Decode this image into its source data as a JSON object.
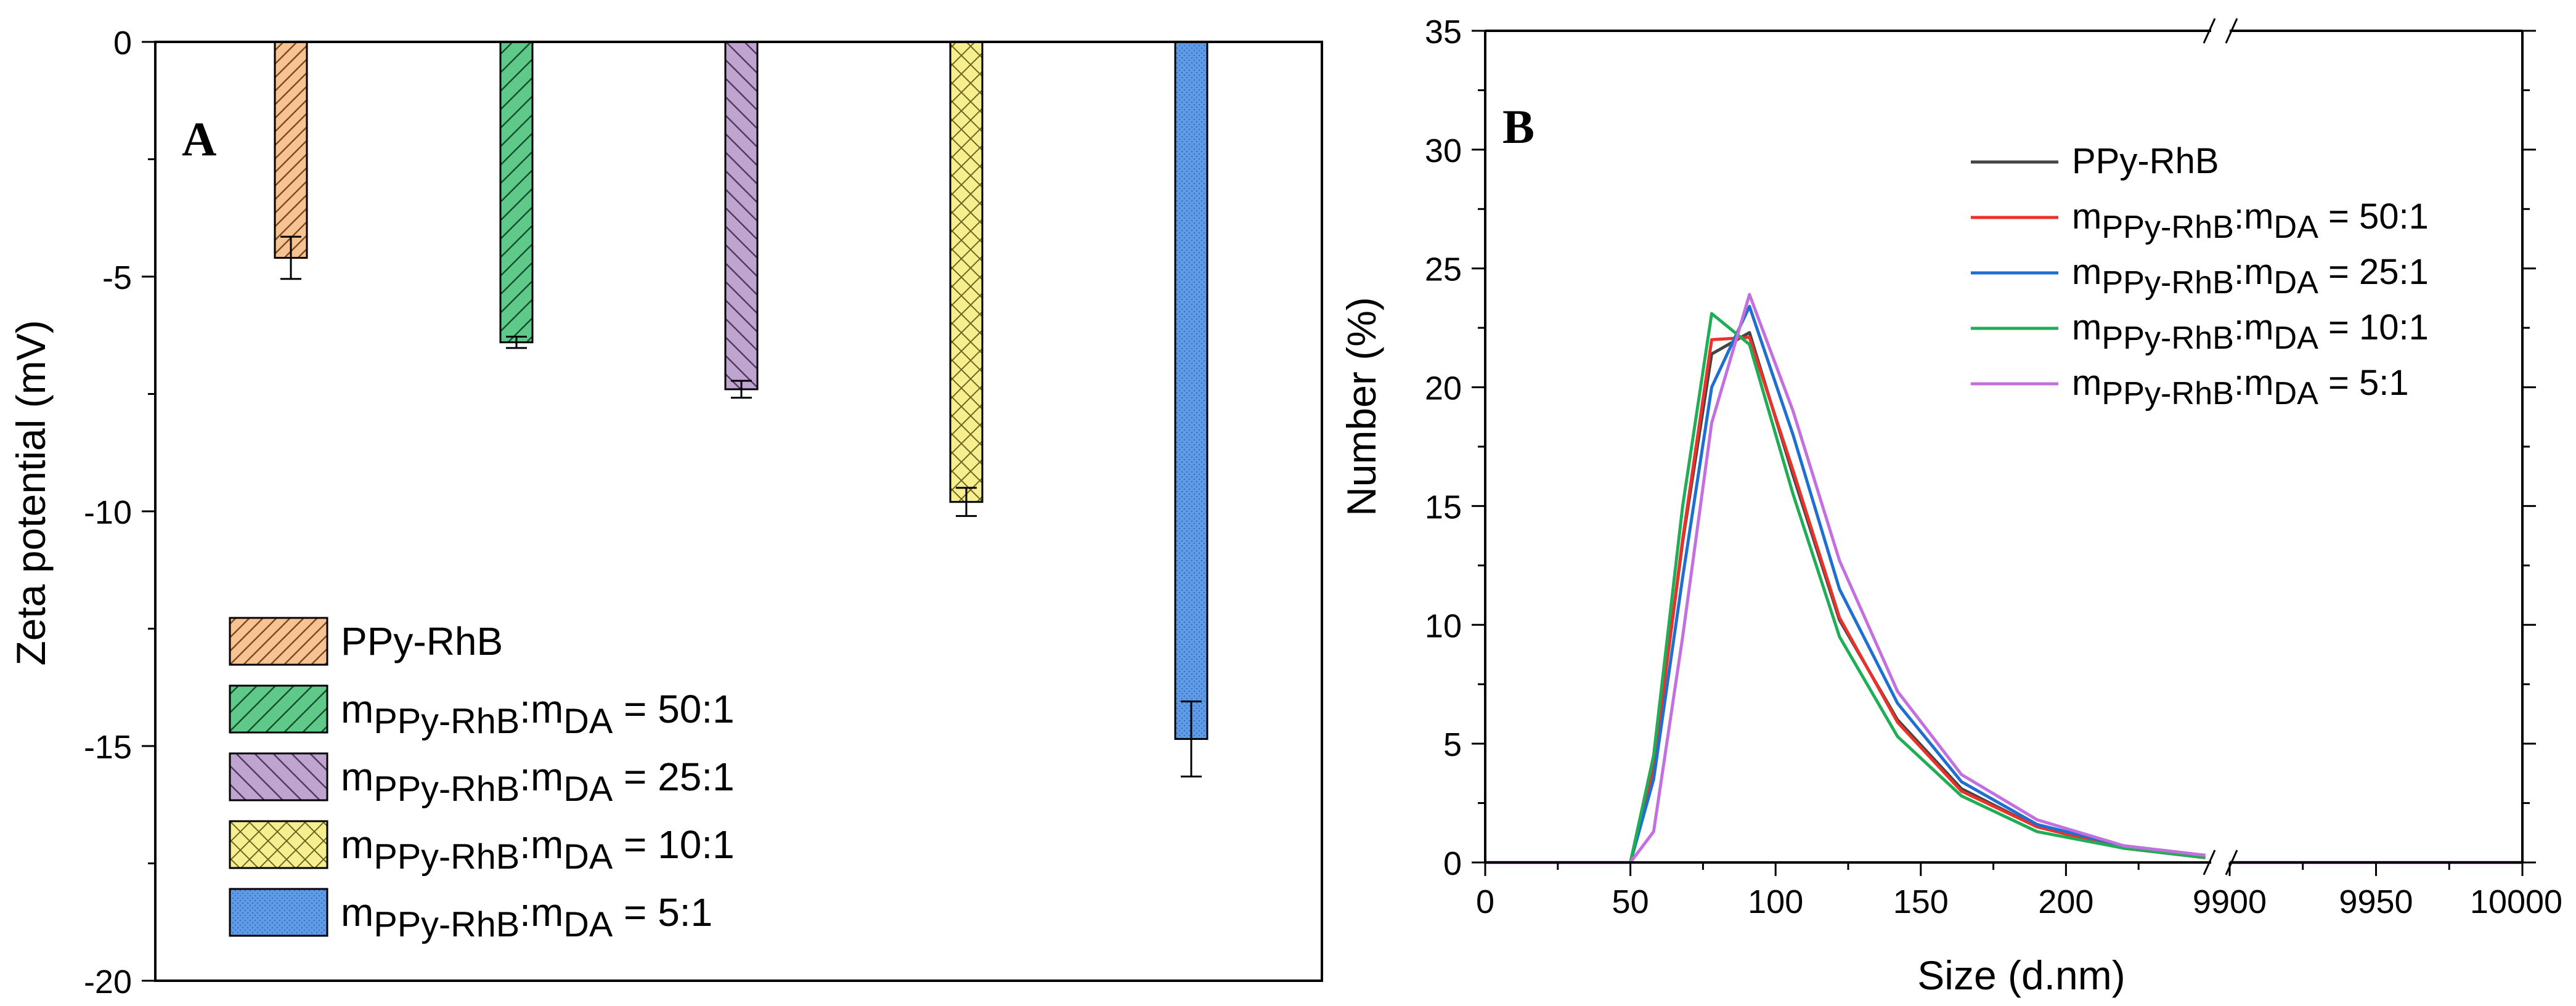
{
  "chart_data": [
    {
      "id": "A",
      "type": "bar",
      "panel_label": "A",
      "ylabel": "Zeta potential (mV)",
      "xlabel": "",
      "ylim": [
        -20,
        0
      ],
      "yticks": [
        "0",
        "-5",
        "-10",
        "-15",
        "-20"
      ],
      "categories": [
        "PPy-RhB",
        "mPPy-RhB:mDA = 50:1",
        "mPPy-RhB:mDA = 25:1",
        "mPPy-RhB:mDA = 10:1",
        "mPPy-RhB:mDA = 5:1"
      ],
      "values": [
        -4.6,
        -6.4,
        -7.4,
        -9.8,
        -14.85
      ],
      "errors": [
        0.45,
        0.12,
        0.18,
        0.3,
        0.8
      ],
      "legend": [
        "PPy-RhB",
        "mPPy-RhB:mDA = 50:1",
        "mPPy-RhB:mDA = 25:1",
        "mPPy-RhB:mDA = 10:1",
        "mPPy-RhB:mDA = 5:1"
      ],
      "colors": [
        "#f7c393",
        "#5fc98a",
        "#bfa4cf",
        "#f7ef8f",
        "#5e9be9"
      ],
      "hatches": [
        "diag-right",
        "diag-right",
        "diag-left",
        "cross",
        "dots"
      ],
      "legend_position": "bottom-left"
    },
    {
      "id": "B",
      "type": "line",
      "panel_label": "B",
      "ylabel": "Number (%)",
      "xlabel": "Size (d.nm)",
      "ylim": [
        0,
        35
      ],
      "yticks": [
        "0",
        "5",
        "10",
        "15",
        "20",
        "25",
        "30",
        "35"
      ],
      "xticks_left": [
        "0",
        "50",
        "100",
        "150",
        "200",
        "9900"
      ],
      "xticks_right": [
        "9950",
        "10000"
      ],
      "axis_break": "x",
      "legend_position": "top-right",
      "series": [
        {
          "name": "PPy-RhB",
          "color": "#444444",
          "x": [
            0,
            50,
            58,
            68,
            78,
            91,
            106,
            122,
            142,
            164,
            190,
            220,
            248
          ],
          "y": [
            0,
            0,
            4.1,
            13.5,
            21.4,
            22.3,
            16.3,
            10.2,
            6.0,
            3.1,
            1.5,
            0.6,
            0.2
          ]
        },
        {
          "name": "mPPy-RhB:mDA = 50:1",
          "color": "#e8322a",
          "x": [
            0,
            50,
            58,
            68,
            78,
            91,
            106,
            122,
            142,
            164,
            190,
            220,
            248
          ],
          "y": [
            0,
            0,
            4.0,
            13.6,
            22.0,
            22.1,
            16.5,
            10.3,
            5.9,
            3.0,
            1.5,
            0.6,
            0.2
          ]
        },
        {
          "name": "mPPy-RhB:mDA = 25:1",
          "color": "#1f6fd1",
          "x": [
            0,
            50,
            58,
            68,
            78,
            91,
            106,
            122,
            142,
            164,
            190,
            220,
            248
          ],
          "y": [
            0,
            0,
            3.5,
            12.0,
            20.0,
            23.4,
            18.0,
            11.5,
            6.7,
            3.4,
            1.6,
            0.7,
            0.3
          ]
        },
        {
          "name": "mPPy-RhB:mDA = 10:1",
          "color": "#1fae55",
          "x": [
            0,
            50,
            58,
            68,
            78,
            91,
            106,
            122,
            142,
            164,
            190,
            220,
            248
          ],
          "y": [
            0,
            0,
            4.5,
            15.0,
            23.1,
            21.8,
            15.5,
            9.5,
            5.3,
            2.8,
            1.3,
            0.6,
            0.2
          ]
        },
        {
          "name": "mPPy-RhB:mDA = 5:1",
          "color": "#c46fe0",
          "x": [
            0,
            50,
            58,
            68,
            78,
            91,
            106,
            122,
            142,
            164,
            190,
            220,
            248
          ],
          "y": [
            0,
            0,
            1.3,
            9.5,
            18.5,
            23.9,
            19.0,
            12.7,
            7.2,
            3.7,
            1.8,
            0.7,
            0.3
          ]
        }
      ],
      "right_segment": {
        "x": [
          9900,
          10000
        ],
        "y": [
          0,
          0
        ],
        "color": "#c46fe0"
      }
    }
  ]
}
